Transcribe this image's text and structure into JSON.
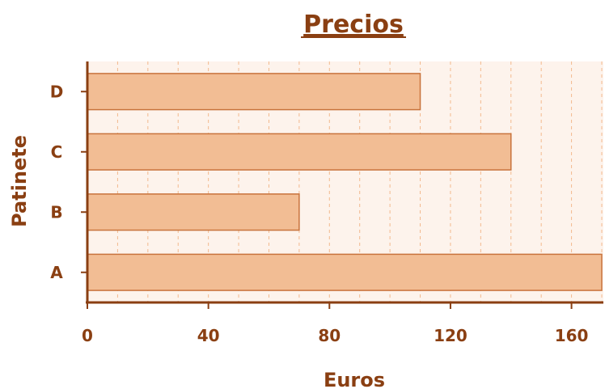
{
  "chart_data": {
    "type": "bar",
    "orientation": "horizontal",
    "title": "Precios",
    "xlabel": "Euros",
    "ylabel": "Patinete",
    "categories": [
      "A",
      "B",
      "C",
      "D"
    ],
    "values": [
      170,
      70,
      140,
      110
    ],
    "xlim": [
      0,
      170
    ],
    "xticks": [
      0,
      40,
      80,
      120,
      160
    ],
    "grid": true,
    "colors": {
      "bar_fill": "#f2bd94",
      "bar_stroke": "#c8733c",
      "plot_bg": "#fdf3ec",
      "axis": "#8a3f12",
      "grid": "#f2b98e",
      "text": "#8a3f12"
    }
  }
}
